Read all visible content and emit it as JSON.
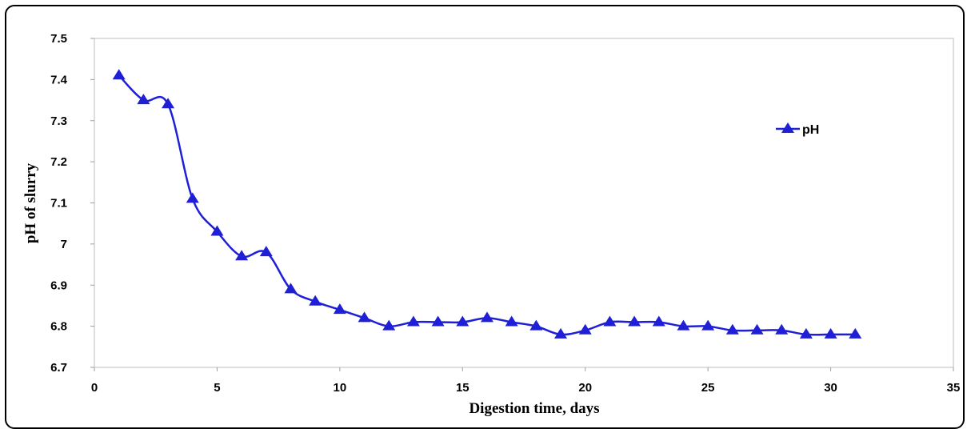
{
  "chart_data": {
    "type": "line",
    "xlabel": "Digestion time, days",
    "ylabel": "pH of slurry",
    "xlim": [
      0,
      35
    ],
    "ylim": [
      6.7,
      7.5
    ],
    "x_ticks": [
      "0",
      "5",
      "10",
      "15",
      "20",
      "25",
      "30",
      "35"
    ],
    "y_ticks": [
      "6.7",
      "6.8",
      "6.9",
      "7",
      "7.1",
      "7.2",
      "7.3",
      "7.4",
      "7.5"
    ],
    "legend_position": "top-right",
    "grid": false,
    "series": [
      {
        "name": "pH",
        "color": "#1f1fd6",
        "marker": "triangle",
        "smooth": true,
        "x": [
          1,
          2,
          3,
          4,
          5,
          6,
          7,
          8,
          9,
          10,
          11,
          12,
          13,
          14,
          15,
          16,
          17,
          18,
          19,
          20,
          21,
          22,
          23,
          24,
          25,
          26,
          27,
          28,
          29,
          30,
          31
        ],
        "y": [
          7.41,
          7.35,
          7.34,
          7.11,
          7.03,
          6.97,
          6.98,
          6.89,
          6.86,
          6.84,
          6.82,
          6.8,
          6.81,
          6.81,
          6.81,
          6.82,
          6.81,
          6.8,
          6.78,
          6.79,
          6.81,
          6.81,
          6.81,
          6.8,
          6.8,
          6.79,
          6.79,
          6.79,
          6.78,
          6.78,
          6.78
        ]
      }
    ]
  }
}
